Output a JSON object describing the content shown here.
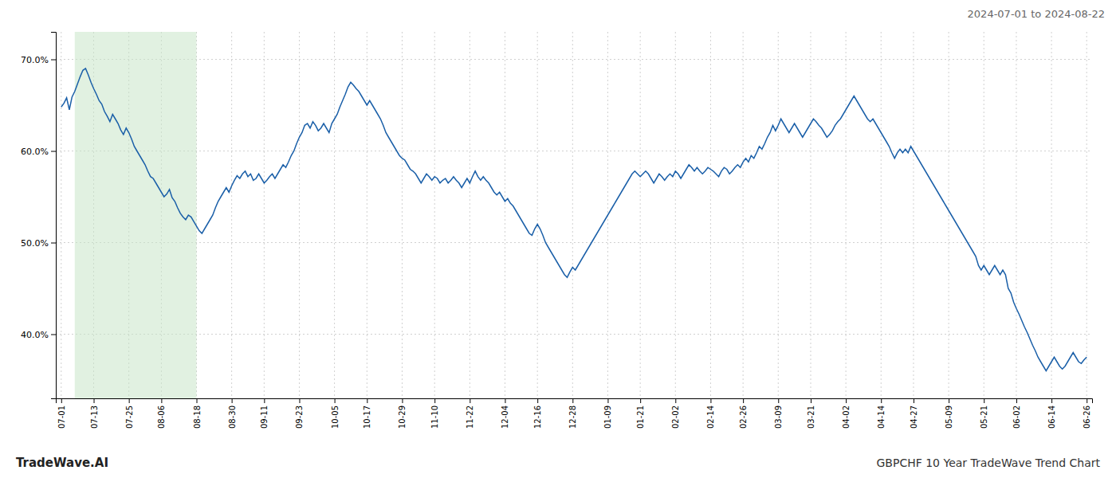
{
  "chart_data": {
    "type": "line",
    "title": "GBPCHF 10 Year TradeWave Trend Chart",
    "subtitle": "2024-07-01 to 2024-08-22",
    "annotations": [
      "TradeWave.AI"
    ],
    "color": "#1a5fa8",
    "grid": true,
    "ylim": [
      33.0,
      73.0
    ],
    "yticks": [
      {
        "value": 40.0,
        "label": "40.0%"
      },
      {
        "value": 50.0,
        "label": "50.0%"
      },
      {
        "value": 60.0,
        "label": "60.0%"
      },
      {
        "value": 70.0,
        "label": "70.0%"
      }
    ],
    "span": {
      "start": 5,
      "end": 50,
      "color": "#c8e6c9"
    },
    "categories": [
      "07-01",
      null,
      null,
      null,
      null,
      null,
      null,
      null,
      null,
      null,
      null,
      null,
      "07-13",
      null,
      null,
      null,
      null,
      null,
      null,
      null,
      null,
      null,
      null,
      null,
      null,
      "07-25",
      null,
      null,
      null,
      null,
      null,
      null,
      null,
      null,
      null,
      null,
      null,
      "08-06",
      null,
      null,
      null,
      null,
      null,
      null,
      null,
      null,
      null,
      null,
      null,
      null,
      "08-18",
      null,
      null,
      null,
      null,
      null,
      null,
      null,
      null,
      null,
      null,
      null,
      null,
      "08-30",
      null,
      null,
      null,
      null,
      null,
      null,
      null,
      null,
      null,
      null,
      null,
      "09-11",
      null,
      null,
      null,
      null,
      null,
      null,
      null,
      null,
      null,
      null,
      null,
      null,
      "09-23",
      null,
      null,
      null,
      null,
      null,
      null,
      null,
      null,
      null,
      null,
      null,
      null,
      "10-05",
      null,
      null,
      null,
      null,
      null,
      null,
      null,
      null,
      null,
      null,
      null,
      "10-17",
      null,
      null,
      null,
      null,
      null,
      null,
      null,
      null,
      null,
      null,
      null,
      null,
      "10-29",
      null,
      null,
      null,
      null,
      null,
      null,
      null,
      null,
      null,
      null,
      null,
      "11-10",
      null,
      null,
      null,
      null,
      null,
      null,
      null,
      null,
      null,
      null,
      null,
      null,
      "11-22",
      null,
      null,
      null,
      null,
      null,
      null,
      null,
      null,
      null,
      null,
      null,
      null,
      "12-04",
      null,
      null,
      null,
      null,
      null,
      null,
      null,
      null,
      null,
      null,
      null,
      "12-16",
      null,
      null,
      null,
      null,
      null,
      null,
      null,
      null,
      null,
      null,
      null,
      null,
      "12-28",
      null,
      null,
      null,
      null,
      null,
      null,
      null,
      null,
      null,
      null,
      null,
      null,
      "01-09",
      null,
      null,
      null,
      null,
      null,
      null,
      null,
      null,
      null,
      null,
      null,
      "01-21",
      null,
      null,
      null,
      null,
      null,
      null,
      null,
      null,
      null,
      null,
      null,
      null,
      "02-02",
      null,
      null,
      null,
      null,
      null,
      null,
      null,
      null,
      null,
      null,
      null,
      null,
      "02-14",
      null,
      null,
      null,
      null,
      null,
      null,
      null,
      null,
      null,
      null,
      null,
      "02-26",
      null,
      null,
      null,
      null,
      null,
      null,
      null,
      null,
      null,
      null,
      null,
      null,
      "03-09",
      null,
      null,
      null,
      null,
      null,
      null,
      null,
      null,
      null,
      null,
      null,
      "03-21",
      null,
      null,
      null,
      null,
      null,
      null,
      null,
      null,
      null,
      null,
      null,
      null,
      "04-02",
      null,
      null,
      null,
      null,
      null,
      null,
      null,
      null,
      null,
      null,
      null,
      null,
      "04-14",
      null,
      null,
      null,
      null,
      null,
      null,
      null,
      null,
      null,
      null,
      null,
      "04-27",
      null,
      null,
      null,
      null,
      null,
      null,
      null,
      null,
      null,
      null,
      null,
      null,
      "05-09",
      null,
      null,
      null,
      null,
      null,
      null,
      null,
      null,
      null,
      null,
      null,
      null,
      "05-21",
      null,
      null,
      null,
      null,
      null,
      null,
      null,
      null,
      null,
      null,
      null,
      "06-02",
      null,
      null,
      null,
      null,
      null,
      null,
      null,
      null,
      null,
      null,
      null,
      null,
      "06-14",
      null,
      null,
      null,
      null,
      null,
      null,
      null,
      null,
      null,
      null,
      null,
      null,
      "06-26"
    ],
    "values": [
      64.8,
      65.2,
      65.8,
      64.5,
      65.9,
      66.5,
      67.3,
      68.1,
      68.8,
      69.0,
      68.3,
      67.5,
      66.8,
      66.2,
      65.5,
      65.1,
      64.3,
      63.8,
      63.2,
      64.0,
      63.5,
      63.0,
      62.3,
      61.8,
      62.5,
      62.0,
      61.3,
      60.5,
      60.0,
      59.5,
      59.0,
      58.5,
      57.8,
      57.2,
      57.0,
      56.5,
      56.0,
      55.5,
      55.0,
      55.3,
      55.8,
      54.9,
      54.5,
      53.8,
      53.2,
      52.8,
      52.5,
      53.0,
      52.8,
      52.3,
      51.8,
      51.3,
      51.0,
      51.5,
      52.0,
      52.5,
      53.0,
      53.8,
      54.5,
      55.0,
      55.5,
      56.0,
      55.5,
      56.2,
      56.8,
      57.3,
      57.0,
      57.5,
      57.8,
      57.2,
      57.5,
      56.8,
      57.0,
      57.5,
      57.0,
      56.5,
      56.8,
      57.2,
      57.5,
      57.0,
      57.5,
      58.0,
      58.5,
      58.2,
      58.8,
      59.5,
      60.0,
      60.8,
      61.5,
      62.0,
      62.8,
      63.0,
      62.5,
      63.2,
      62.8,
      62.2,
      62.5,
      63.0,
      62.5,
      62.0,
      63.0,
      63.5,
      64.0,
      64.8,
      65.5,
      66.2,
      67.0,
      67.5,
      67.2,
      66.8,
      66.5,
      66.0,
      65.5,
      65.0,
      65.5,
      65.0,
      64.5,
      64.0,
      63.5,
      62.8,
      62.0,
      61.5,
      61.0,
      60.5,
      60.0,
      59.5,
      59.2,
      59.0,
      58.5,
      58.0,
      57.8,
      57.5,
      57.0,
      56.5,
      57.0,
      57.5,
      57.2,
      56.8,
      57.2,
      57.0,
      56.5,
      56.8,
      57.0,
      56.5,
      56.8,
      57.2,
      56.8,
      56.5,
      56.0,
      56.5,
      57.0,
      56.5,
      57.2,
      57.8,
      57.2,
      56.8,
      57.2,
      56.8,
      56.5,
      56.0,
      55.5,
      55.2,
      55.5,
      55.0,
      54.5,
      54.8,
      54.3,
      54.0,
      53.5,
      53.0,
      52.5,
      52.0,
      51.5,
      51.0,
      50.8,
      51.5,
      52.0,
      51.5,
      50.8,
      50.0,
      49.5,
      49.0,
      48.5,
      48.0,
      47.5,
      47.0,
      46.5,
      46.2,
      46.8,
      47.3,
      47.0,
      47.5,
      48.0,
      48.5,
      49.0,
      49.5,
      50.0,
      50.5,
      51.0,
      51.5,
      52.0,
      52.5,
      53.0,
      53.5,
      54.0,
      54.5,
      55.0,
      55.5,
      56.0,
      56.5,
      57.0,
      57.5,
      57.8,
      57.5,
      57.2,
      57.5,
      57.8,
      57.5,
      57.0,
      56.5,
      57.0,
      57.5,
      57.2,
      56.8,
      57.2,
      57.5,
      57.2,
      57.8,
      57.5,
      57.0,
      57.5,
      58.0,
      58.5,
      58.2,
      57.8,
      58.2,
      57.8,
      57.5,
      57.8,
      58.2,
      58.0,
      57.8,
      57.5,
      57.2,
      57.8,
      58.2,
      58.0,
      57.5,
      57.8,
      58.2,
      58.5,
      58.2,
      58.8,
      59.2,
      58.8,
      59.5,
      59.2,
      59.8,
      60.5,
      60.2,
      60.8,
      61.5,
      62.0,
      62.8,
      62.2,
      62.8,
      63.5,
      63.0,
      62.5,
      62.0,
      62.5,
      63.0,
      62.5,
      62.0,
      61.5,
      62.0,
      62.5,
      63.0,
      63.5,
      63.2,
      62.8,
      62.5,
      62.0,
      61.5,
      61.8,
      62.2,
      62.8,
      63.2,
      63.5,
      64.0,
      64.5,
      65.0,
      65.5,
      66.0,
      65.5,
      65.0,
      64.5,
      64.0,
      63.5,
      63.2,
      63.5,
      63.0,
      62.5,
      62.0,
      61.5,
      61.0,
      60.5,
      59.8,
      59.2,
      59.8,
      60.2,
      59.8,
      60.2,
      59.8,
      60.5,
      60.0,
      59.5,
      59.0,
      58.5,
      58.0,
      57.5,
      57.0,
      56.5,
      56.0,
      55.5,
      55.0,
      54.5,
      54.0,
      53.5,
      53.0,
      52.5,
      52.0,
      51.5,
      51.0,
      50.5,
      50.0,
      49.5,
      49.0,
      48.5,
      47.5,
      47.0,
      47.5,
      47.0,
      46.5,
      47.0,
      47.5,
      47.0,
      46.5,
      47.0,
      46.5,
      45.0,
      44.5,
      43.5,
      42.8,
      42.2,
      41.5,
      40.8,
      40.2,
      39.5,
      38.8,
      38.2,
      37.5,
      37.0,
      36.5,
      36.0,
      36.5,
      37.0,
      37.5,
      37.0,
      36.5,
      36.2,
      36.5,
      37.0,
      37.5,
      38.0,
      37.5,
      37.0,
      36.8,
      37.2,
      37.5
    ]
  }
}
